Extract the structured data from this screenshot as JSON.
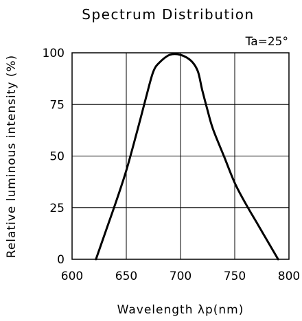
{
  "chart_data": {
    "type": "line",
    "title": "Spectrum Distribution",
    "condition": "Ta=25°",
    "xlabel": "Wavelength λp(nm)",
    "ylabel": "Relative luminous intensity (%)",
    "xlim": [
      600,
      800
    ],
    "ylim": [
      0,
      100
    ],
    "x_ticks": [
      "600",
      "650",
      "700",
      "750",
      "800"
    ],
    "y_ticks": [
      "0",
      "25",
      "50",
      "75",
      "100"
    ],
    "grid": true,
    "series": [
      {
        "x": [
          622,
          630,
          640,
          650,
          660,
          670,
          675,
          680,
          690,
          700,
          710,
          716,
          720,
          725,
          730,
          740,
          750,
          760,
          770,
          780,
          790
        ],
        "y": [
          0,
          12,
          27,
          43,
          62,
          82,
          91,
          95,
          99,
          99,
          96,
          91,
          82,
          72,
          63,
          50,
          37,
          27,
          18,
          9,
          0
        ]
      }
    ]
  }
}
